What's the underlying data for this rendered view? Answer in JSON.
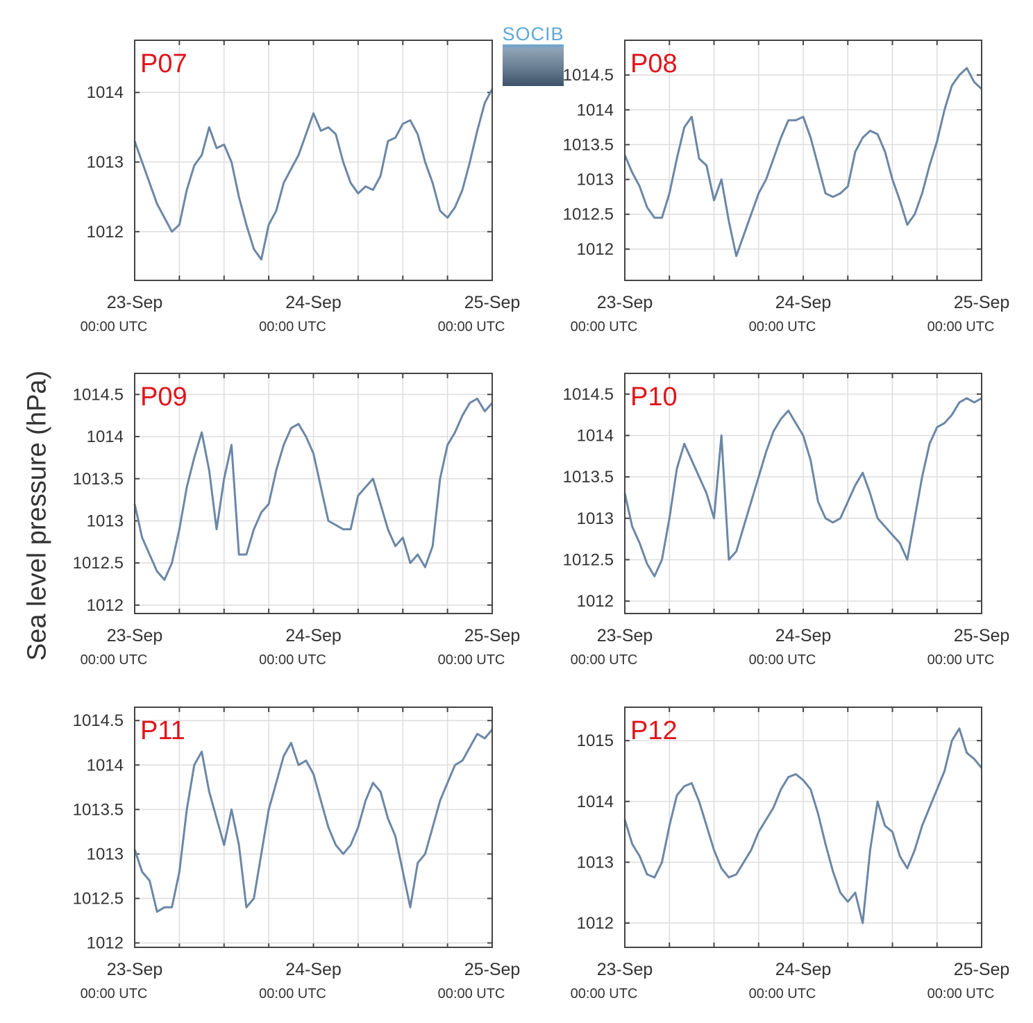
{
  "ylabel": "Sea level pressure (hPa)",
  "logo": {
    "name": "SOCIB"
  },
  "colors": {
    "line": "#6b87a6",
    "station_label": "#e0141c",
    "axes": "#444444",
    "grid": "#dddddd"
  },
  "x_ticks": [
    {
      "date": "23-Sep",
      "time": "00:00 UTC"
    },
    {
      "date": "24-Sep",
      "time": "00:00 UTC"
    },
    {
      "date": "25-Sep",
      "time": "00:00 UTC"
    }
  ],
  "chart_data": [
    {
      "type": "line",
      "title": "P07",
      "x_unit": "hours since 23-Sep 00:00 UTC",
      "xlim": [
        0,
        48
      ],
      "ylim": [
        1011.3,
        1014.75
      ],
      "yticks": [
        1012,
        1013,
        1014
      ],
      "x": [
        0,
        1,
        2,
        3,
        4,
        5,
        6,
        7,
        8,
        9,
        10,
        11,
        12,
        13,
        14,
        15,
        16,
        17,
        18,
        19,
        20,
        21,
        22,
        23,
        24,
        25,
        26,
        27,
        28,
        29,
        30,
        31,
        32,
        33,
        34,
        35,
        36,
        37,
        38,
        39,
        40,
        41,
        42,
        43,
        44,
        45,
        46,
        47,
        48
      ],
      "values": [
        1013.3,
        1013.0,
        1012.7,
        1012.4,
        1012.2,
        1012.0,
        1012.1,
        1012.6,
        1012.95,
        1013.1,
        1013.5,
        1013.2,
        1013.25,
        1013.0,
        1012.5,
        1012.1,
        1011.75,
        1011.6,
        1012.1,
        1012.3,
        1012.7,
        1012.9,
        1013.1,
        1013.4,
        1013.7,
        1013.45,
        1013.5,
        1013.4,
        1013.0,
        1012.7,
        1012.55,
        1012.65,
        1012.6,
        1012.8,
        1013.3,
        1013.35,
        1013.55,
        1013.6,
        1013.4,
        1013.0,
        1012.7,
        1012.3,
        1012.2,
        1012.35,
        1012.6,
        1013.0,
        1013.45,
        1013.85,
        1014.05
      ]
    },
    {
      "type": "line",
      "title": "P08",
      "x_unit": "hours since 23-Sep 00:00 UTC",
      "xlim": [
        0,
        48
      ],
      "ylim": [
        1011.55,
        1015.0
      ],
      "yticks": [
        1012,
        1012.5,
        1013,
        1013.5,
        1014,
        1014.5
      ],
      "x": [
        0,
        1,
        2,
        3,
        4,
        5,
        6,
        7,
        8,
        9,
        10,
        11,
        12,
        13,
        14,
        15,
        16,
        17,
        18,
        19,
        20,
        21,
        22,
        23,
        24,
        25,
        26,
        27,
        28,
        29,
        30,
        31,
        32,
        33,
        34,
        35,
        36,
        37,
        38,
        39,
        40,
        41,
        42,
        43,
        44,
        45,
        46,
        47,
        48
      ],
      "values": [
        1013.35,
        1013.1,
        1012.9,
        1012.6,
        1012.45,
        1012.45,
        1012.8,
        1013.3,
        1013.75,
        1013.9,
        1013.3,
        1013.2,
        1012.7,
        1013.0,
        1012.4,
        1011.9,
        1012.2,
        1012.5,
        1012.8,
        1013.0,
        1013.3,
        1013.6,
        1013.85,
        1013.85,
        1013.9,
        1013.6,
        1013.2,
        1012.8,
        1012.75,
        1012.8,
        1012.9,
        1013.4,
        1013.6,
        1013.7,
        1013.65,
        1013.4,
        1013.0,
        1012.7,
        1012.35,
        1012.5,
        1012.8,
        1013.2,
        1013.55,
        1014.0,
        1014.35,
        1014.5,
        1014.6,
        1014.4,
        1014.3
      ]
    },
    {
      "type": "line",
      "title": "P09",
      "x_unit": "hours since 23-Sep 00:00 UTC",
      "xlim": [
        0,
        48
      ],
      "ylim": [
        1011.9,
        1014.75
      ],
      "yticks": [
        1012,
        1012.5,
        1013,
        1013.5,
        1014,
        1014.5
      ],
      "x": [
        0,
        1,
        2,
        3,
        4,
        5,
        6,
        7,
        8,
        9,
        10,
        11,
        12,
        13,
        14,
        15,
        16,
        17,
        18,
        19,
        20,
        21,
        22,
        23,
        24,
        25,
        26,
        27,
        28,
        29,
        30,
        31,
        32,
        33,
        34,
        35,
        36,
        37,
        38,
        39,
        40,
        41,
        42,
        43,
        44,
        45,
        46,
        47,
        48
      ],
      "values": [
        1013.2,
        1012.8,
        1012.6,
        1012.4,
        1012.3,
        1012.5,
        1012.9,
        1013.4,
        1013.75,
        1014.05,
        1013.6,
        1012.9,
        1013.5,
        1013.9,
        1012.6,
        1012.6,
        1012.9,
        1013.1,
        1013.2,
        1013.6,
        1013.9,
        1014.1,
        1014.15,
        1014.0,
        1013.8,
        1013.4,
        1013.0,
        1012.95,
        1012.9,
        1012.9,
        1013.3,
        1013.4,
        1013.5,
        1013.2,
        1012.9,
        1012.7,
        1012.8,
        1012.5,
        1012.6,
        1012.45,
        1012.7,
        1013.5,
        1013.9,
        1014.05,
        1014.25,
        1014.4,
        1014.45,
        1014.3,
        1014.4
      ]
    },
    {
      "type": "line",
      "title": "P10",
      "x_unit": "hours since 23-Sep 00:00 UTC",
      "xlim": [
        0,
        48
      ],
      "ylim": [
        1011.85,
        1014.75
      ],
      "yticks": [
        1012,
        1012.5,
        1013,
        1013.5,
        1014,
        1014.5
      ],
      "x": [
        0,
        1,
        2,
        3,
        4,
        5,
        6,
        7,
        8,
        9,
        10,
        11,
        12,
        13,
        14,
        15,
        16,
        17,
        18,
        19,
        20,
        21,
        22,
        23,
        24,
        25,
        26,
        27,
        28,
        29,
        30,
        31,
        32,
        33,
        34,
        35,
        36,
        37,
        38,
        39,
        40,
        41,
        42,
        43,
        44,
        45,
        46,
        47,
        48
      ],
      "values": [
        1013.3,
        1012.9,
        1012.7,
        1012.45,
        1012.3,
        1012.5,
        1013.0,
        1013.6,
        1013.9,
        1013.7,
        1013.5,
        1013.3,
        1013.0,
        1014.0,
        1012.5,
        1012.6,
        1012.9,
        1013.2,
        1013.5,
        1013.8,
        1014.05,
        1014.2,
        1014.3,
        1014.15,
        1014.0,
        1013.7,
        1013.2,
        1013.0,
        1012.95,
        1013.0,
        1013.2,
        1013.4,
        1013.55,
        1013.3,
        1013.0,
        1012.9,
        1012.8,
        1012.7,
        1012.5,
        1013.0,
        1013.5,
        1013.9,
        1014.1,
        1014.15,
        1014.25,
        1014.4,
        1014.45,
        1014.4,
        1014.45
      ]
    },
    {
      "type": "line",
      "title": "P11",
      "x_unit": "hours since 23-Sep 00:00 UTC",
      "xlim": [
        0,
        48
      ],
      "ylim": [
        1011.95,
        1014.65
      ],
      "yticks": [
        1012,
        1012.5,
        1013,
        1013.5,
        1014,
        1014.5
      ],
      "x": [
        0,
        1,
        2,
        3,
        4,
        5,
        6,
        7,
        8,
        9,
        10,
        11,
        12,
        13,
        14,
        15,
        16,
        17,
        18,
        19,
        20,
        21,
        22,
        23,
        24,
        25,
        26,
        27,
        28,
        29,
        30,
        31,
        32,
        33,
        34,
        35,
        36,
        37,
        38,
        39,
        40,
        41,
        42,
        43,
        44,
        45,
        46,
        47,
        48
      ],
      "values": [
        1013.05,
        1012.8,
        1012.7,
        1012.35,
        1012.4,
        1012.4,
        1012.8,
        1013.5,
        1014.0,
        1014.15,
        1013.7,
        1013.4,
        1013.1,
        1013.5,
        1013.1,
        1012.4,
        1012.5,
        1013.0,
        1013.5,
        1013.8,
        1014.1,
        1014.25,
        1014.0,
        1014.05,
        1013.9,
        1013.6,
        1013.3,
        1013.1,
        1013.0,
        1013.1,
        1013.3,
        1013.6,
        1013.8,
        1013.7,
        1013.4,
        1013.2,
        1012.8,
        1012.4,
        1012.9,
        1013.0,
        1013.3,
        1013.6,
        1013.8,
        1014.0,
        1014.05,
        1014.2,
        1014.35,
        1014.3,
        1014.4
      ]
    },
    {
      "type": "line",
      "title": "P12",
      "x_unit": "hours since 23-Sep 00:00 UTC",
      "xlim": [
        0,
        48
      ],
      "ylim": [
        1011.6,
        1015.55
      ],
      "yticks": [
        1012,
        1013,
        1014,
        1015
      ],
      "x": [
        0,
        1,
        2,
        3,
        4,
        5,
        6,
        7,
        8,
        9,
        10,
        11,
        12,
        13,
        14,
        15,
        16,
        17,
        18,
        19,
        20,
        21,
        22,
        23,
        24,
        25,
        26,
        27,
        28,
        29,
        30,
        31,
        32,
        33,
        34,
        35,
        36,
        37,
        38,
        39,
        40,
        41,
        42,
        43,
        44,
        45,
        46,
        47,
        48
      ],
      "values": [
        1013.7,
        1013.3,
        1013.1,
        1012.8,
        1012.75,
        1013.0,
        1013.6,
        1014.1,
        1014.25,
        1014.3,
        1014.0,
        1013.6,
        1013.2,
        1012.9,
        1012.75,
        1012.8,
        1013.0,
        1013.2,
        1013.5,
        1013.7,
        1013.9,
        1014.2,
        1014.4,
        1014.45,
        1014.35,
        1014.2,
        1013.8,
        1013.3,
        1012.85,
        1012.5,
        1012.35,
        1012.5,
        1012.0,
        1013.2,
        1014.0,
        1013.6,
        1013.5,
        1013.1,
        1012.9,
        1013.2,
        1013.6,
        1013.9,
        1014.2,
        1014.5,
        1015.0,
        1015.2,
        1014.8,
        1014.7,
        1014.55
      ]
    }
  ]
}
